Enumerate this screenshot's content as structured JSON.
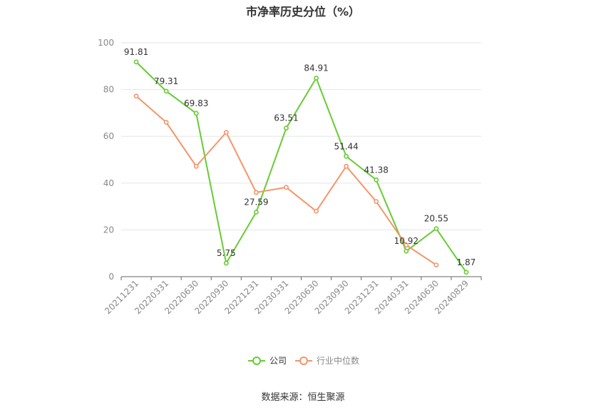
{
  "chart_data": {
    "type": "line",
    "title": "市净率历史分位（%）",
    "source": "数据来源：恒生聚源",
    "categories": [
      "20211231",
      "20220331",
      "20220630",
      "20220930",
      "20221231",
      "20230331",
      "20230630",
      "20230930",
      "20231231",
      "20240331",
      "20240630",
      "20240829"
    ],
    "ylim": [
      0,
      100
    ],
    "yticks": [
      0,
      20,
      40,
      60,
      80,
      100
    ],
    "grid": true,
    "legend_position": "bottom",
    "series": [
      {
        "name": "公司",
        "color": "#66cc33",
        "values": [
          91.81,
          79.31,
          69.83,
          5.75,
          27.59,
          63.51,
          84.91,
          51.44,
          41.38,
          10.92,
          20.55,
          1.87
        ],
        "labels": [
          "91.81",
          "79.31",
          "69.83",
          "5.75",
          "27.59",
          "63.51",
          "84.91",
          "51.44",
          "41.38",
          "10.92",
          "20.55",
          "1.87"
        ]
      },
      {
        "name": "行业中位数",
        "color": "#f4956a",
        "values": [
          77.2,
          66.0,
          47.2,
          61.7,
          36.0,
          38.2,
          28.0,
          47.2,
          32.1,
          13.5,
          5.0,
          null
        ]
      }
    ]
  }
}
